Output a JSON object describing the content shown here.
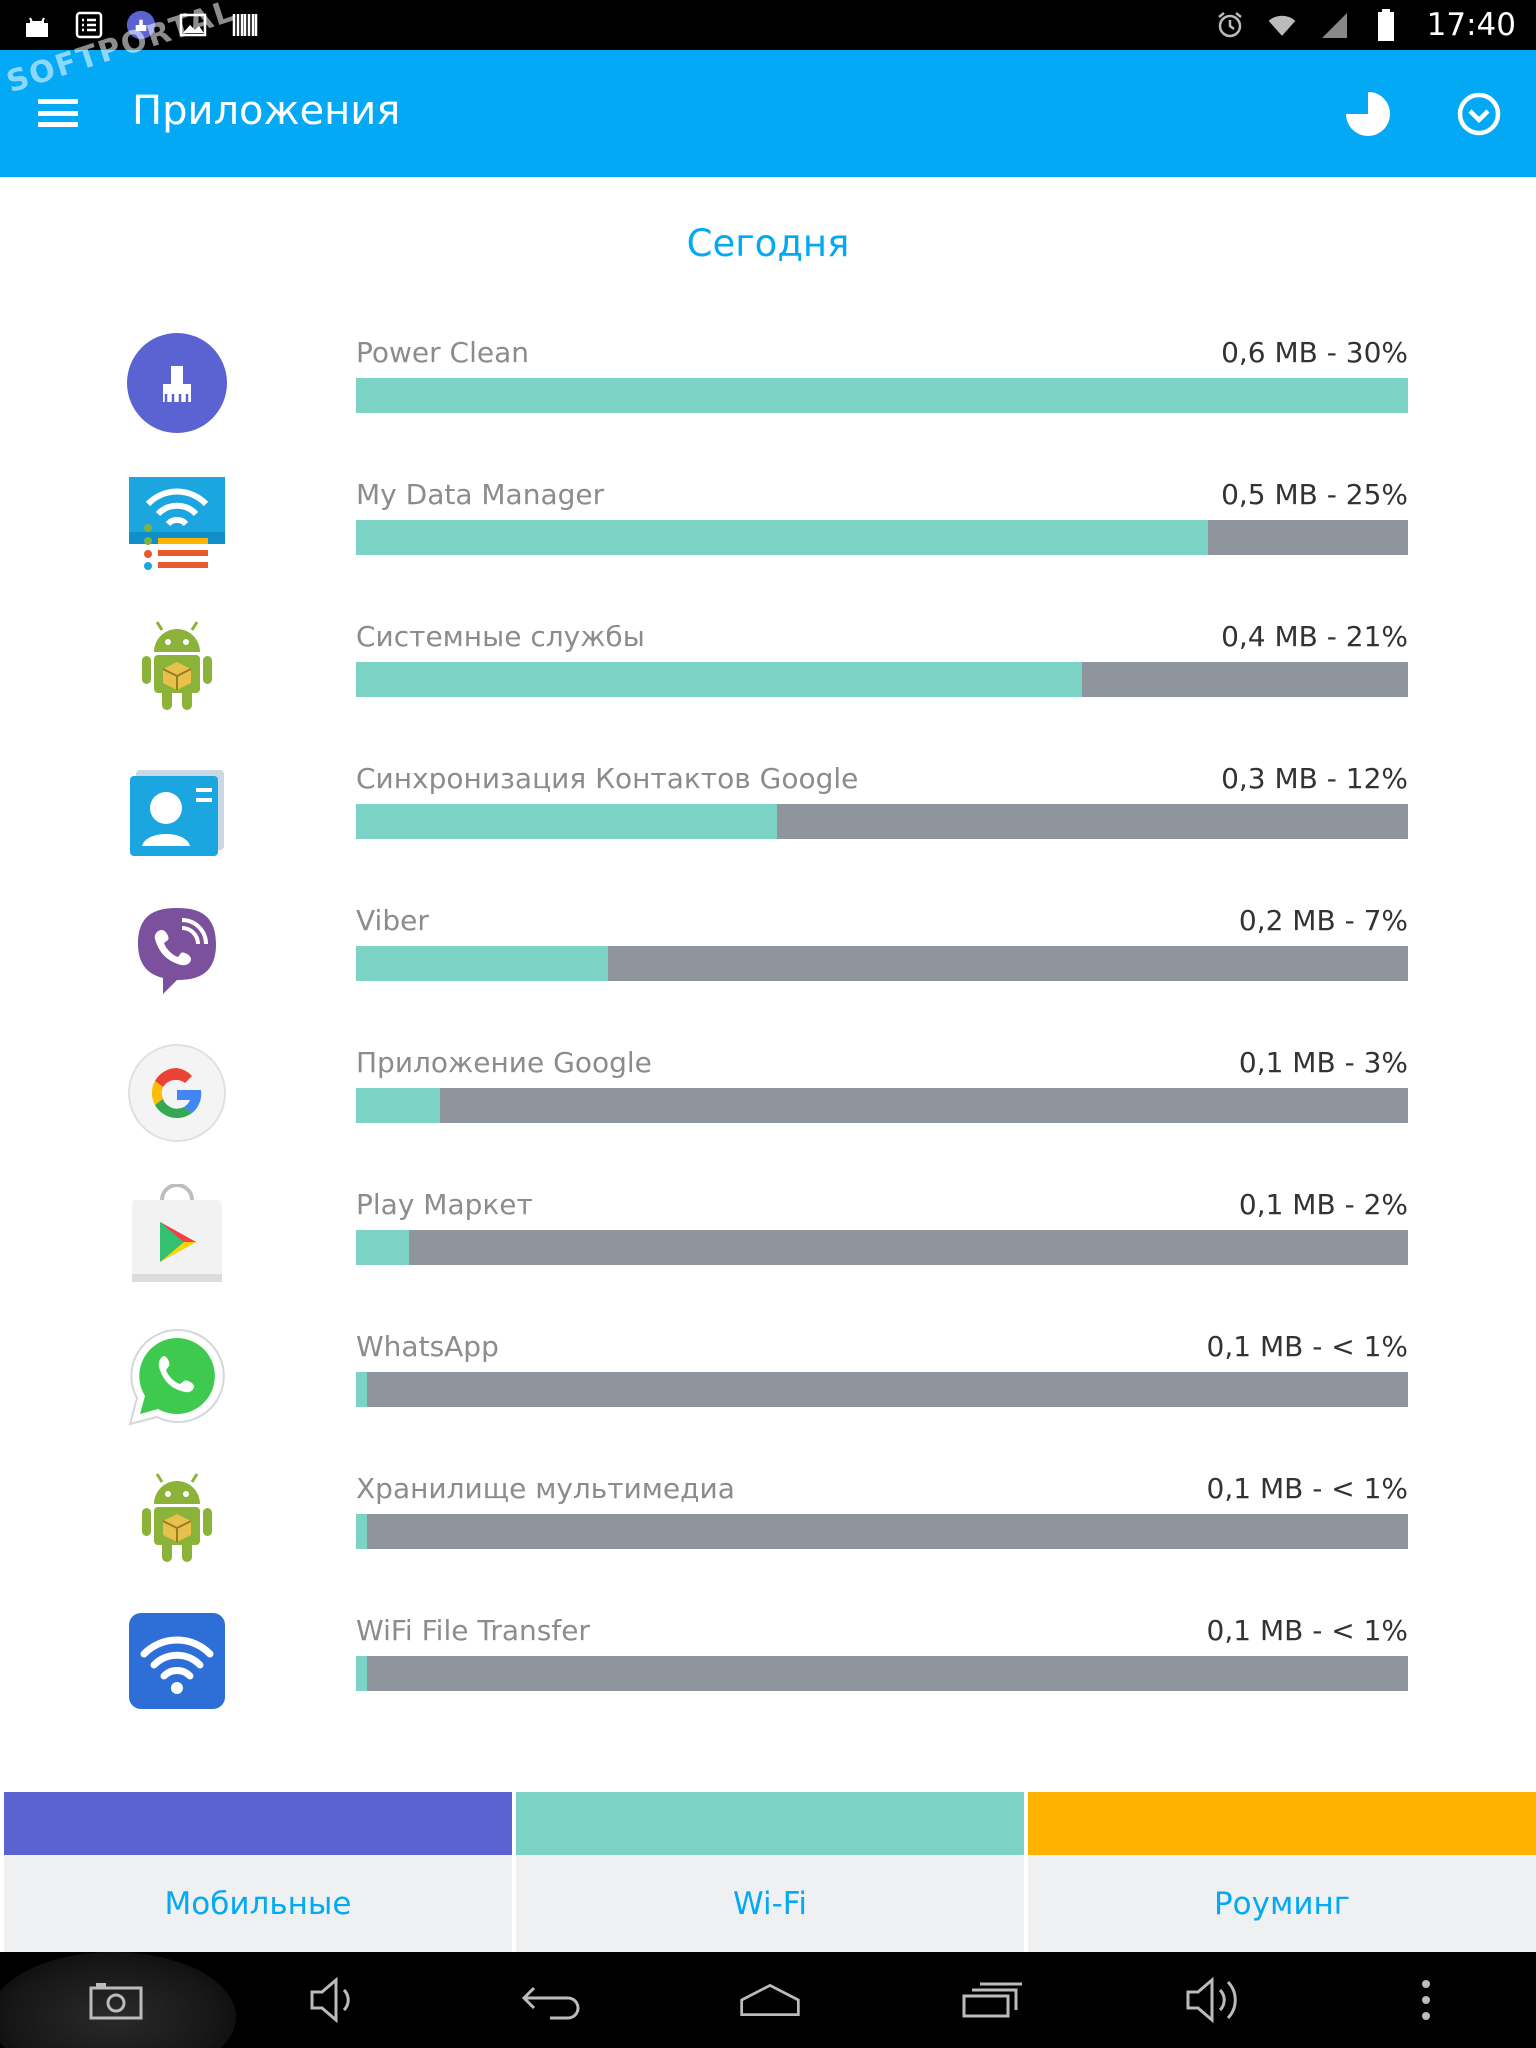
{
  "status_bar": {
    "time": "17:40",
    "left_icons": [
      "android-debug-icon",
      "task-list-icon",
      "power-clean-status-icon",
      "image-icon",
      "barcode-icon"
    ],
    "right_icons": [
      "alarm-icon",
      "wifi-signal-icon",
      "cell-signal-icon",
      "battery-icon"
    ]
  },
  "watermark": {
    "text": "SOFTPORTAL"
  },
  "app_bar": {
    "title": "Приложения",
    "menu_icon": "hamburger-menu-icon",
    "actions": [
      "pie-chart-icon",
      "clock-icon"
    ]
  },
  "section": {
    "title": "Сегодня"
  },
  "apps": [
    {
      "name": "Power Clean",
      "value": "0,6 MB - 30%",
      "fill": 1.0,
      "icon": "power-clean-icon"
    },
    {
      "name": "My Data Manager",
      "value": "0,5 MB - 25%",
      "fill": 0.81,
      "icon": "my-data-manager-icon"
    },
    {
      "name": "Системные службы",
      "value": "0,4 MB - 21%",
      "fill": 0.69,
      "icon": "android-system-icon"
    },
    {
      "name": "Синхронизация Контактов Google",
      "value": "0,3 MB - 12%",
      "fill": 0.4,
      "icon": "google-contacts-icon"
    },
    {
      "name": "Viber",
      "value": "0,2 MB - 7%",
      "fill": 0.24,
      "icon": "viber-icon"
    },
    {
      "name": "Приложение Google",
      "value": "0,1 MB - 3%",
      "fill": 0.08,
      "icon": "google-icon"
    },
    {
      "name": "Play Маркет",
      "value": "0,1 MB - 2%",
      "fill": 0.05,
      "icon": "play-market-icon"
    },
    {
      "name": "WhatsApp",
      "value": "0,1 MB - < 1%",
      "fill": 0.01,
      "icon": "whatsapp-icon"
    },
    {
      "name": "Хранилище мультимедиа",
      "value": "0,1 MB - < 1%",
      "fill": 0.01,
      "icon": "android-media-storage-icon"
    },
    {
      "name": "WiFi File Transfer",
      "value": "0,1 MB - < 1%",
      "fill": 0.01,
      "icon": "wifi-file-transfer-icon"
    }
  ],
  "tabs": [
    {
      "label": "Мобильные",
      "color": "#5b63d3"
    },
    {
      "label": "Wi-Fi",
      "color": "#7ad3c4"
    },
    {
      "label": "Роуминг",
      "color": "#ffb300"
    }
  ],
  "nav_bar": [
    "screenshot-icon",
    "volume-down-icon",
    "back-icon",
    "home-icon",
    "recents-icon",
    "volume-up-icon",
    "more-vert-icon"
  ],
  "colors": {
    "accent": "#03a9f4",
    "bar_fill": "#7ad3c4",
    "bar_track": "#8e959c",
    "mobile": "#5b63d3",
    "wifi": "#7ad3c4",
    "roaming": "#ffb300"
  }
}
